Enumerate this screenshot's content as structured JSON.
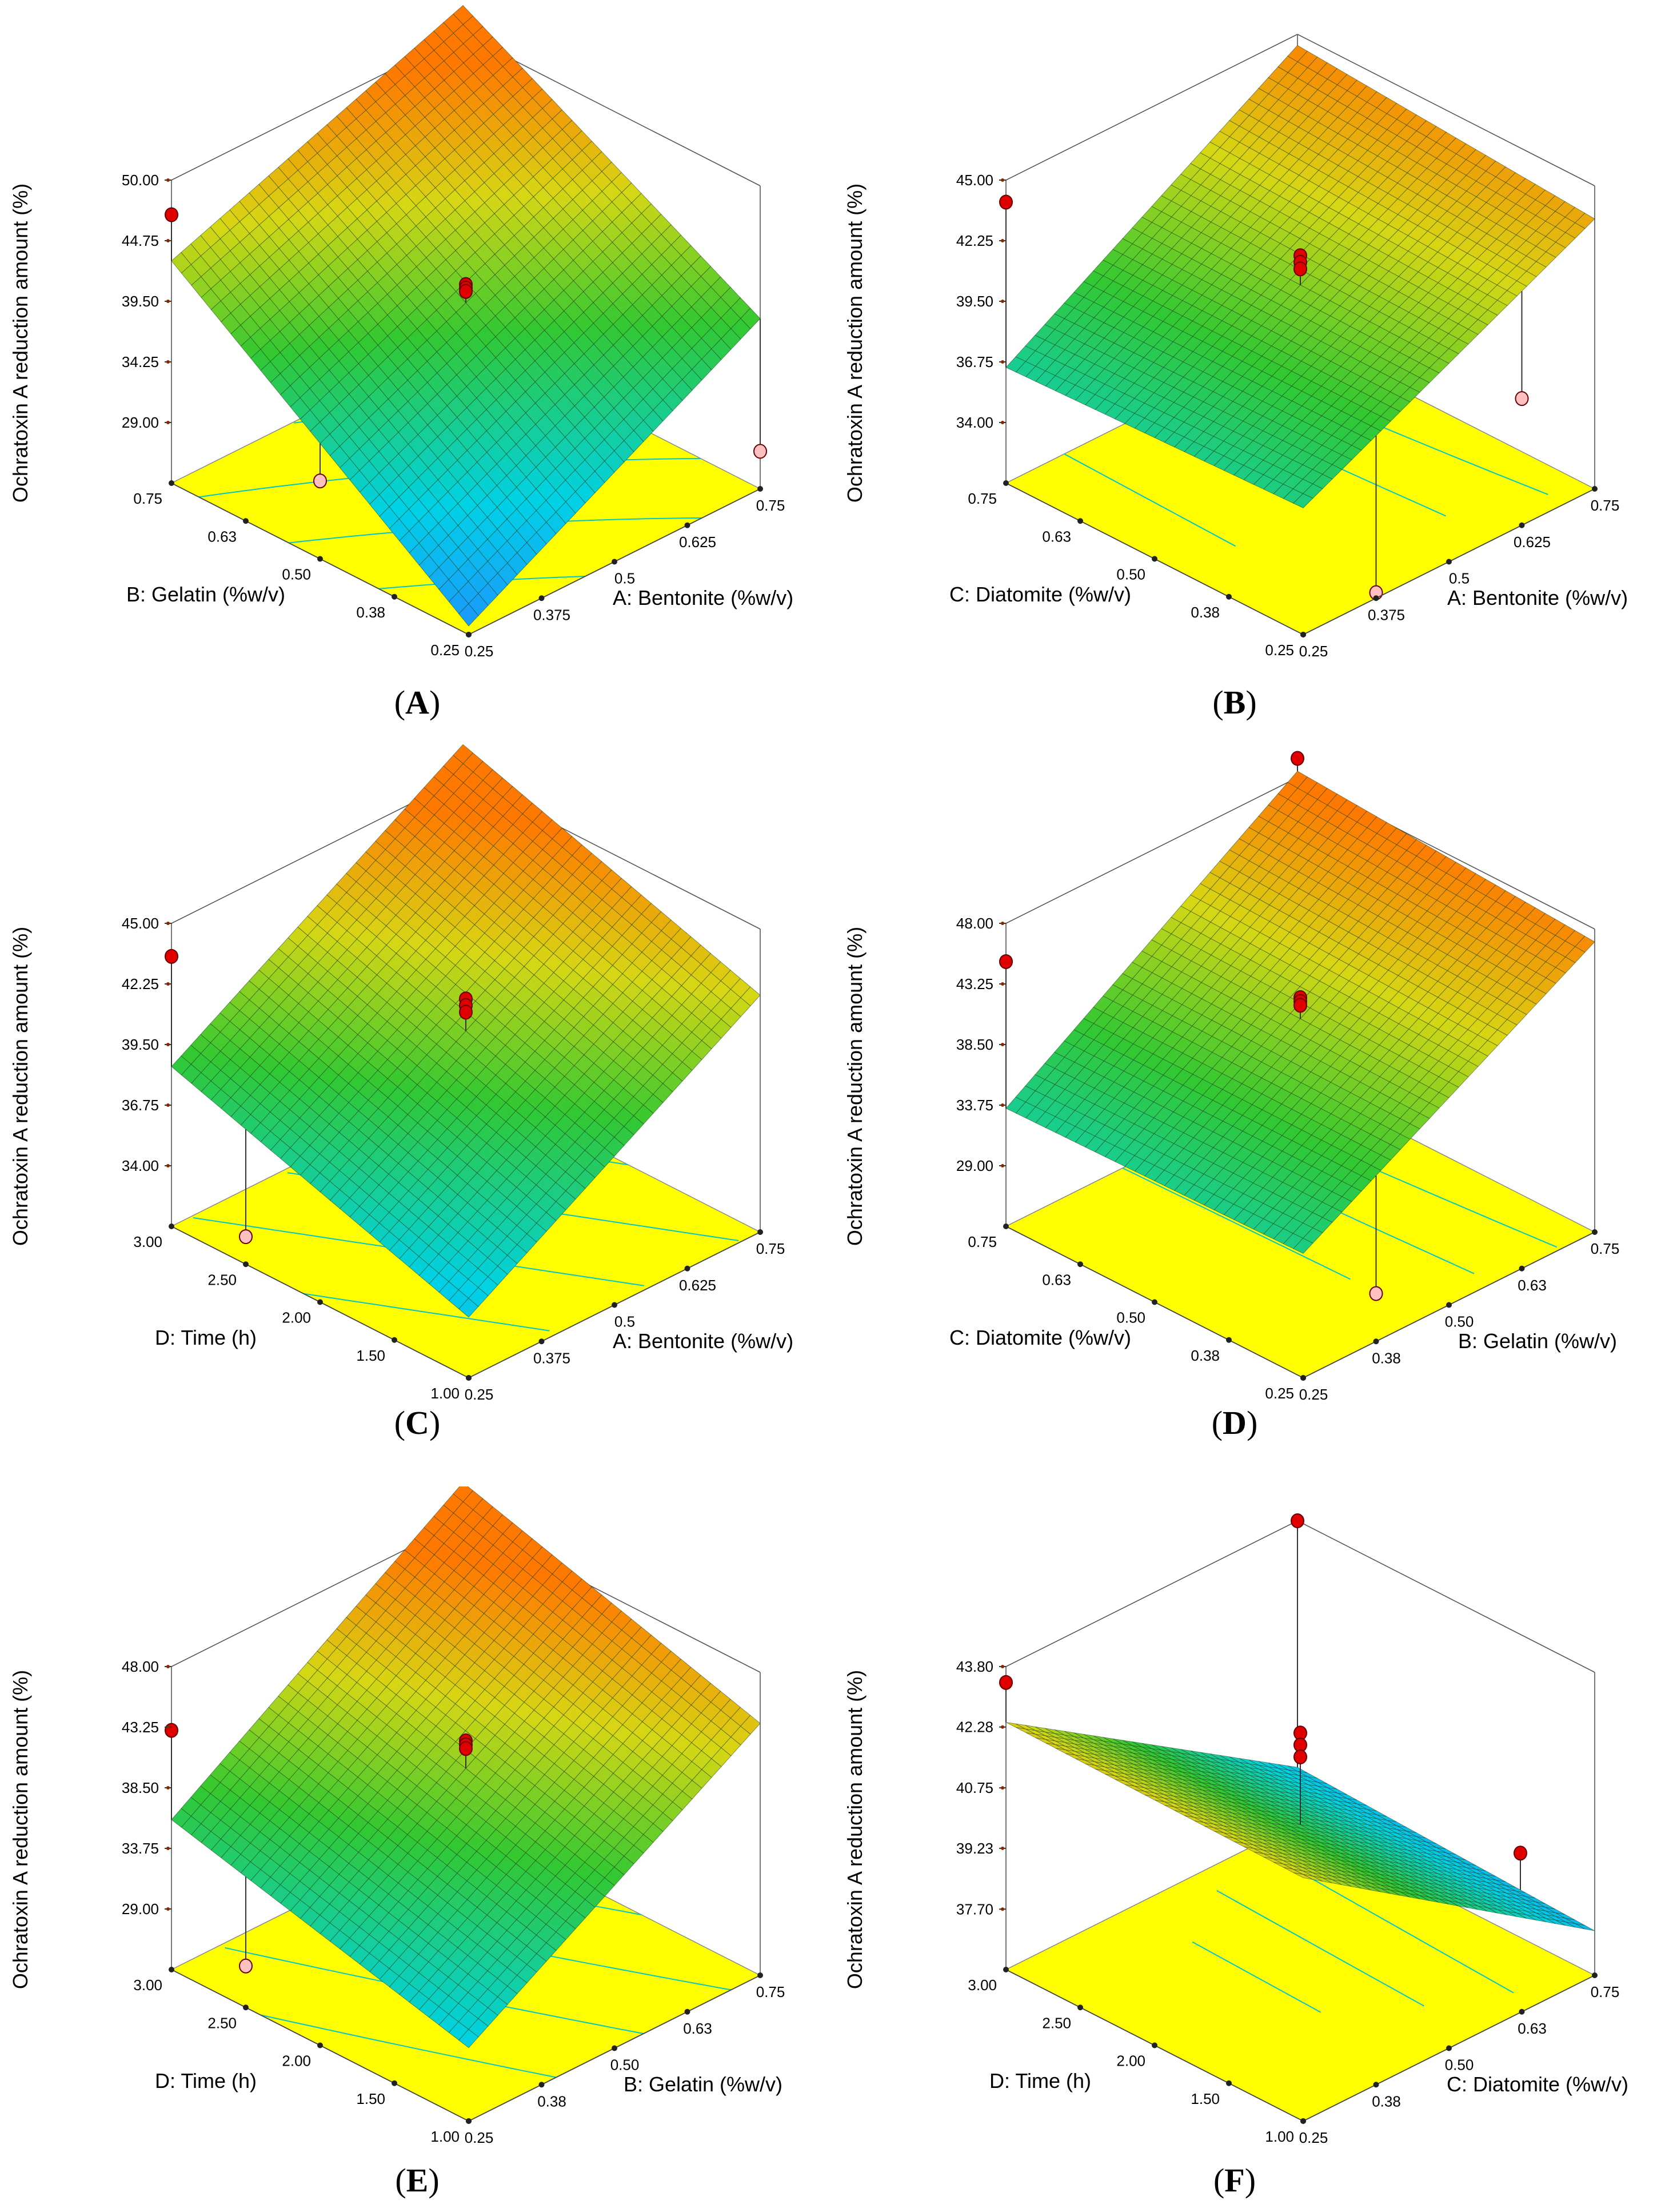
{
  "figure": {
    "z_label": "Ochratoxin A reduction amount (%)"
  },
  "chart_data": [
    {
      "type": "surface",
      "panel": "A",
      "title": "",
      "xlabel": "A: Bentonite (%w/v)",
      "ylabel": "B: Gelatin (%w/v)",
      "zlabel": "Ochratoxin A reduction amount (%)",
      "x_ticks": [
        "0.25",
        "0.375",
        "0.5",
        "0.625",
        "0.75"
      ],
      "y_ticks": [
        "0.25",
        "0.38",
        "0.50",
        "0.63",
        "0.75"
      ],
      "z_ticks": [
        "29.00",
        "34.25",
        "39.50",
        "44.75",
        "50.00"
      ],
      "xlim": [
        0.25,
        0.75
      ],
      "ylim": [
        0.25,
        0.75
      ],
      "zlim": [
        23.75,
        50.0
      ],
      "surface_corners": {
        "x_low_y_low": 24.5,
        "x_high_y_low": 38.5,
        "x_low_y_high": 43.0,
        "x_high_y_high": 52.5
      },
      "design_points": [
        {
          "x": 0.25,
          "y": 0.75,
          "z": 47.0
        },
        {
          "x": 0.5,
          "y": 0.5,
          "z": 41.2
        },
        {
          "x": 0.5,
          "y": 0.5,
          "z": 40.9
        },
        {
          "x": 0.5,
          "y": 0.5,
          "z": 40.6
        },
        {
          "x": 0.25,
          "y": 0.5,
          "z": 30.5
        },
        {
          "x": 0.75,
          "y": 0.25,
          "z": 27.0
        }
      ]
    },
    {
      "type": "surface",
      "panel": "B",
      "title": "",
      "xlabel": "A: Bentonite (%w/v)",
      "ylabel": "C: Diatomite (%w/v)",
      "zlabel": "Ochratoxin A reduction amount (%)",
      "x_ticks": [
        "0.25",
        "0.375",
        "0.5",
        "0.625",
        "0.75"
      ],
      "y_ticks": [
        "0.25",
        "0.38",
        "0.50",
        "0.63",
        "0.75"
      ],
      "z_ticks": [
        "34.00",
        "36.75",
        "39.50",
        "42.25",
        "45.00"
      ],
      "xlim": [
        0.25,
        0.75
      ],
      "ylim": [
        0.25,
        0.75
      ],
      "zlim": [
        31.25,
        45.0
      ],
      "surface_corners": {
        "x_low_y_low": 37.0,
        "x_high_y_low": 43.5,
        "x_low_y_high": 36.5,
        "x_high_y_high": 44.5
      },
      "design_points": [
        {
          "x": 0.25,
          "y": 0.75,
          "z": 44.0
        },
        {
          "x": 0.5,
          "y": 0.5,
          "z": 41.7
        },
        {
          "x": 0.5,
          "y": 0.5,
          "z": 41.4
        },
        {
          "x": 0.5,
          "y": 0.5,
          "z": 41.1
        },
        {
          "x": 0.75,
          "y": 0.5,
          "z": 41.0
        },
        {
          "x": 0.625,
          "y": 0.25,
          "z": 37.0
        },
        {
          "x": 0.375,
          "y": 0.25,
          "z": 31.5
        }
      ]
    },
    {
      "type": "surface",
      "panel": "C",
      "title": "",
      "xlabel": "A: Bentonite (%w/v)",
      "ylabel": "D: Time (h)",
      "zlabel": "Ochratoxin A reduction amount (%)",
      "x_ticks": [
        "0.25",
        "0.375",
        "0.5",
        "0.625",
        "0.75"
      ],
      "y_ticks": [
        "1.00",
        "1.50",
        "2.00",
        "2.50",
        "3.00"
      ],
      "z_ticks": [
        "34.00",
        "36.75",
        "39.50",
        "42.25",
        "45.00"
      ],
      "xlim": [
        0.25,
        0.75
      ],
      "ylim": [
        1.0,
        3.0
      ],
      "zlim": [
        31.25,
        45.0
      ],
      "surface_corners": {
        "x_low_y_low": 34.0,
        "x_high_y_low": 42.0,
        "x_low_y_high": 38.5,
        "x_high_y_high": 46.5
      },
      "design_points": [
        {
          "x": 0.25,
          "y": 3.0,
          "z": 43.5
        },
        {
          "x": 0.5,
          "y": 2.0,
          "z": 41.7
        },
        {
          "x": 0.5,
          "y": 2.0,
          "z": 41.4
        },
        {
          "x": 0.5,
          "y": 2.0,
          "z": 41.1
        },
        {
          "x": 0.75,
          "y": 1.5,
          "z": 38.0
        },
        {
          "x": 0.25,
          "y": 2.5,
          "z": 32.5
        }
      ]
    },
    {
      "type": "surface",
      "panel": "D",
      "title": "",
      "xlabel": "B: Gelatin (%w/v)",
      "ylabel": "C: Diatomite (%w/v)",
      "zlabel": "Ochratoxin A reduction amount (%)",
      "x_ticks": [
        "0.25",
        "0.38",
        "0.50",
        "0.63",
        "0.75"
      ],
      "y_ticks": [
        "0.25",
        "0.38",
        "0.50",
        "0.63",
        "0.75"
      ],
      "z_ticks": [
        "29.00",
        "33.75",
        "38.50",
        "43.25",
        "48.00"
      ],
      "xlim": [
        0.25,
        0.75
      ],
      "ylim": [
        0.25,
        0.75
      ],
      "zlim": [
        24.25,
        48.0
      ],
      "surface_corners": {
        "x_low_y_low": 34.0,
        "x_high_y_low": 47.0,
        "x_low_y_high": 33.5,
        "x_high_y_high": 48.5
      },
      "design_points": [
        {
          "x": 0.75,
          "y": 0.75,
          "z": 49.5
        },
        {
          "x": 0.25,
          "y": 0.75,
          "z": 45.0
        },
        {
          "x": 0.5,
          "y": 0.5,
          "z": 42.4
        },
        {
          "x": 0.5,
          "y": 0.5,
          "z": 42.1
        },
        {
          "x": 0.5,
          "y": 0.5,
          "z": 41.8
        },
        {
          "x": 0.75,
          "y": 0.5,
          "z": 40.0
        },
        {
          "x": 0.375,
          "y": 0.25,
          "z": 28.0
        }
      ]
    },
    {
      "type": "surface",
      "panel": "E",
      "title": "",
      "xlabel": "B: Gelatin (%w/v)",
      "ylabel": "D: Time (h)",
      "zlabel": "Ochratoxin A reduction amount (%)",
      "x_ticks": [
        "0.25",
        "0.38",
        "0.50",
        "0.63",
        "0.75"
      ],
      "y_ticks": [
        "1.00",
        "1.50",
        "2.00",
        "2.50",
        "3.00"
      ],
      "z_ticks": [
        "29.00",
        "33.75",
        "38.50",
        "43.25",
        "48.00"
      ],
      "xlim": [
        0.25,
        0.75
      ],
      "ylim": [
        1.0,
        3.0
      ],
      "zlim": [
        24.25,
        48.0
      ],
      "surface_corners": {
        "x_low_y_low": 30.0,
        "x_high_y_low": 44.0,
        "x_low_y_high": 36.0,
        "x_high_y_high": 51.0
      },
      "design_points": [
        {
          "x": 0.75,
          "y": 3.0,
          "z": 50.0
        },
        {
          "x": 0.25,
          "y": 3.0,
          "z": 43.0
        },
        {
          "x": 0.5,
          "y": 2.0,
          "z": 42.4
        },
        {
          "x": 0.5,
          "y": 2.0,
          "z": 42.1
        },
        {
          "x": 0.5,
          "y": 2.0,
          "z": 41.8
        },
        {
          "x": 0.75,
          "y": 1.5,
          "z": 37.0
        },
        {
          "x": 0.25,
          "y": 2.5,
          "z": 27.5
        }
      ]
    },
    {
      "type": "surface",
      "panel": "F",
      "title": "",
      "xlabel": "C: Diatomite (%w/v)",
      "ylabel": "D: Time (h)",
      "zlabel": "Ochratoxin A reduction amount (%)",
      "x_ticks": [
        "0.25",
        "0.38",
        "0.50",
        "0.63",
        "0.75"
      ],
      "y_ticks": [
        "1.00",
        "1.50",
        "2.00",
        "2.50",
        "3.00"
      ],
      "z_ticks": [
        "37.70",
        "39.23",
        "40.75",
        "42.28",
        "43.80"
      ],
      "xlim": [
        0.25,
        0.75
      ],
      "ylim": [
        1.0,
        3.0
      ],
      "zlim": [
        36.18,
        43.8
      ],
      "surface_corners": {
        "x_low_y_low": 42.3,
        "x_high_y_low": 37.3,
        "x_low_y_high": 42.4,
        "x_high_y_high": 37.6
      },
      "design_points": [
        {
          "x": 0.25,
          "y": 3.0,
          "z": 43.4
        },
        {
          "x": 0.75,
          "y": 3.0,
          "z": 43.8
        },
        {
          "x": 0.5,
          "y": 2.0,
          "z": 42.2
        },
        {
          "x": 0.5,
          "y": 2.0,
          "z": 41.9
        },
        {
          "x": 0.5,
          "y": 2.0,
          "z": 41.6
        },
        {
          "x": 0.75,
          "y": 1.5,
          "z": 38.3
        }
      ]
    }
  ],
  "panel_labels": {
    "A": {
      "open": "(",
      "letter": "A",
      "close": ")"
    },
    "B": {
      "open": "(",
      "letter": "B",
      "close": ")"
    },
    "C": {
      "open": "(",
      "letter": "C",
      "close": ")"
    },
    "D": {
      "open": "(",
      "letter": "D",
      "close": ")"
    },
    "E": {
      "open": "(",
      "letter": "E",
      "close": ")"
    },
    "F": {
      "open": "(",
      "letter": "F",
      "close": ")"
    }
  },
  "colors": {
    "floor": "#ffff00",
    "floor_line": "#00c8c8",
    "surface_low": "#1e90ff",
    "surface_mid": "#32c832",
    "surface_high": "#ff7800",
    "mesh": "#1a3a1a",
    "point_fill": "#e00000",
    "point_below_fill": "#ffc0c0"
  }
}
